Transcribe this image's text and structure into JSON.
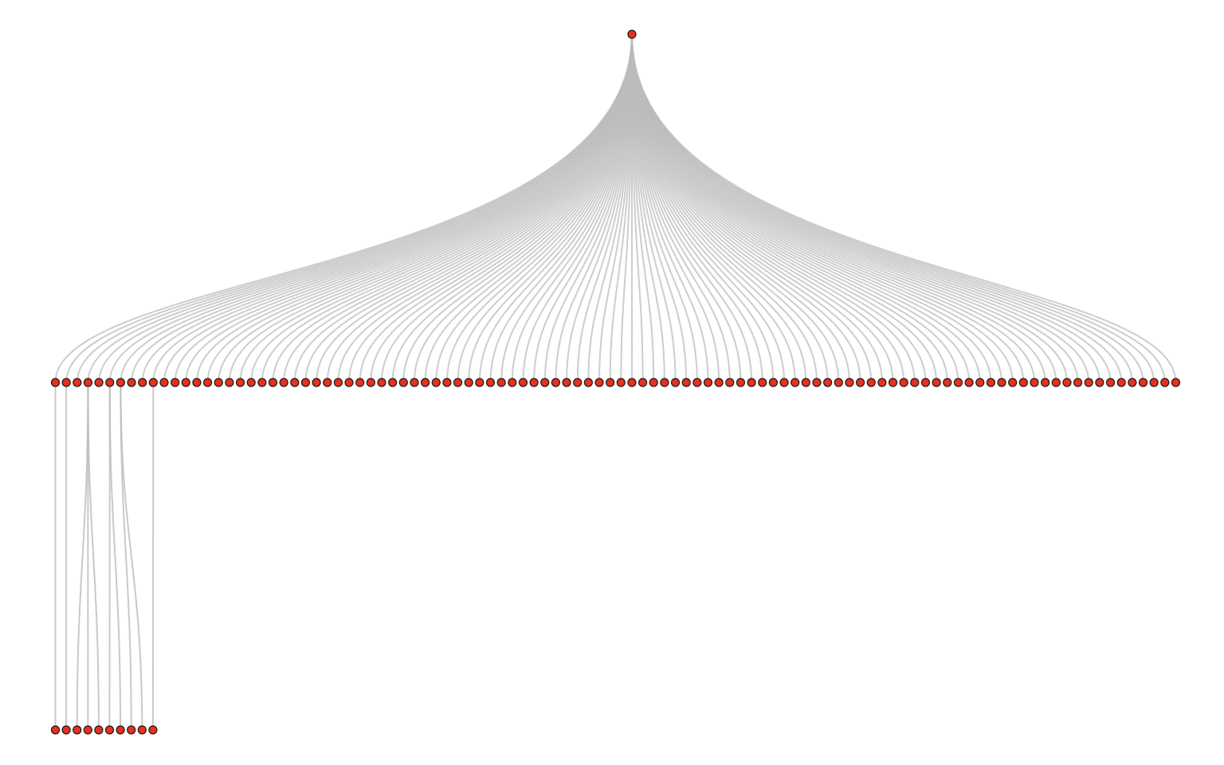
{
  "diagram": {
    "type": "tree",
    "orientation": "top-down",
    "levels": 3,
    "root_count": 1,
    "level1_count": 104,
    "level2_count": 10,
    "level2_parents": [
      0,
      1,
      3,
      3,
      3,
      5,
      5,
      6,
      6,
      9
    ],
    "colors": {
      "background": "#ffffff",
      "node_fill": "#e8301c",
      "node_stroke": "#1a1a1a",
      "edge": "#bcbcbc"
    }
  }
}
